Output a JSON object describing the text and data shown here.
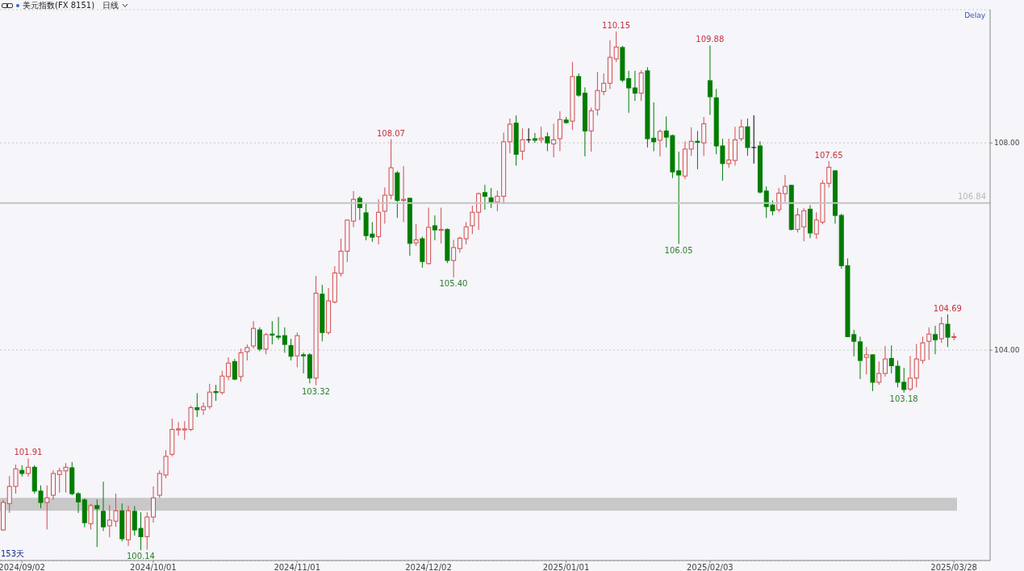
{
  "chart_data": {
    "type": "candlestick",
    "title": "美元指数(FX 8151)",
    "subtitle": "日线",
    "categories": [
      null,
      null,
      null,
      "2024/09/02",
      null,
      null,
      null,
      null,
      null,
      null,
      null,
      null,
      null,
      null,
      null,
      null,
      null,
      null,
      null,
      null,
      null,
      null,
      null,
      null,
      "2024/10/01",
      null,
      null,
      null,
      null,
      null,
      null,
      null,
      null,
      null,
      null,
      null,
      null,
      null,
      null,
      null,
      null,
      null,
      null,
      null,
      null,
      null,
      null,
      "2024/11/01",
      null,
      null,
      null,
      null,
      null,
      null,
      null,
      null,
      null,
      null,
      null,
      null,
      null,
      null,
      null,
      null,
      null,
      null,
      null,
      null,
      "2024/12/02",
      null,
      null,
      null,
      null,
      null,
      null,
      null,
      null,
      null,
      null,
      null,
      null,
      null,
      null,
      null,
      null,
      null,
      null,
      null,
      null,
      null,
      "2025/01/01",
      null,
      null,
      null,
      null,
      null,
      null,
      null,
      null,
      null,
      null,
      null,
      null,
      null,
      null,
      null,
      null,
      null,
      null,
      null,
      null,
      null,
      null,
      "2025/02/03",
      null,
      null,
      null,
      null,
      null,
      null,
      null,
      null,
      null,
      null,
      null,
      null,
      null,
      null,
      null,
      null,
      null,
      null,
      null,
      null,
      null,
      null,
      null,
      null,
      null,
      null,
      null,
      null,
      null,
      null,
      null,
      null,
      null,
      null,
      null,
      null,
      null,
      null,
      "2025/03/28"
    ],
    "ohlc": [
      [
        100.53,
        101.11,
        100.51,
        101.06
      ],
      [
        101.04,
        101.57,
        100.86,
        101.37
      ],
      [
        101.37,
        101.79,
        101.23,
        101.71
      ],
      [
        101.68,
        101.78,
        101.56,
        101.62
      ],
      [
        101.62,
        101.91,
        101.56,
        101.74
      ],
      [
        101.74,
        101.78,
        101.23,
        101.28
      ],
      [
        101.28,
        101.39,
        100.95,
        101.06
      ],
      [
        101.06,
        101.39,
        100.54,
        101.15
      ],
      [
        101.2,
        101.68,
        101.11,
        101.62
      ],
      [
        101.6,
        101.73,
        101.25,
        101.67
      ],
      [
        101.67,
        101.82,
        101.25,
        101.74
      ],
      [
        101.73,
        101.84,
        101.2,
        101.23
      ],
      [
        101.23,
        101.26,
        100.86,
        101.07
      ],
      [
        101.11,
        101.14,
        100.58,
        100.67
      ],
      [
        100.65,
        101.03,
        100.54,
        101.0
      ],
      [
        101.0,
        101.12,
        100.2,
        100.94
      ],
      [
        100.89,
        101.46,
        100.51,
        100.59
      ],
      [
        100.61,
        101.01,
        100.39,
        100.72
      ],
      [
        100.7,
        101.23,
        100.59,
        100.9
      ],
      [
        100.9,
        101.04,
        100.31,
        100.36
      ],
      [
        100.34,
        101.0,
        100.22,
        100.9
      ],
      [
        100.89,
        100.99,
        100.42,
        100.53
      ],
      [
        100.56,
        100.87,
        100.14,
        100.4
      ],
      [
        100.4,
        100.87,
        100.15,
        100.78
      ],
      [
        100.78,
        101.37,
        100.67,
        101.15
      ],
      [
        101.2,
        101.68,
        101.15,
        101.62
      ],
      [
        101.59,
        102.07,
        101.53,
        101.95
      ],
      [
        101.99,
        102.68,
        101.95,
        102.47
      ],
      [
        102.46,
        102.61,
        102.35,
        102.48
      ],
      [
        102.46,
        102.63,
        102.27,
        102.48
      ],
      [
        102.47,
        102.93,
        102.44,
        102.89
      ],
      [
        102.89,
        103.17,
        102.71,
        102.85
      ],
      [
        102.85,
        102.99,
        102.75,
        102.91
      ],
      [
        102.91,
        103.35,
        102.86,
        103.19
      ],
      [
        103.2,
        103.33,
        103.02,
        103.18
      ],
      [
        103.18,
        103.6,
        103.14,
        103.5
      ],
      [
        103.49,
        103.86,
        103.42,
        103.75
      ],
      [
        103.78,
        103.83,
        103.42,
        103.44
      ],
      [
        103.49,
        104.03,
        103.39,
        103.95
      ],
      [
        103.97,
        104.11,
        103.8,
        104.05
      ],
      [
        104.08,
        104.56,
        104.03,
        104.42
      ],
      [
        104.39,
        104.44,
        103.98,
        104.02
      ],
      [
        104.02,
        104.33,
        103.92,
        104.3
      ],
      [
        104.31,
        104.56,
        104.11,
        104.29
      ],
      [
        104.27,
        104.64,
        104.2,
        104.25
      ],
      [
        104.28,
        104.44,
        103.95,
        104.11
      ],
      [
        104.09,
        104.22,
        103.8,
        103.88
      ],
      [
        103.89,
        104.34,
        103.67,
        104.28
      ],
      [
        103.91,
        103.95,
        103.55,
        103.89
      ],
      [
        103.91,
        103.94,
        103.36,
        103.46
      ],
      [
        103.46,
        105.43,
        103.32,
        105.1
      ],
      [
        105.08,
        105.26,
        104.17,
        104.34
      ],
      [
        104.34,
        105.2,
        104.3,
        104.95
      ],
      [
        104.93,
        105.62,
        104.9,
        105.49
      ],
      [
        105.48,
        106.15,
        105.42,
        105.91
      ],
      [
        105.91,
        106.52,
        105.7,
        106.51
      ],
      [
        106.49,
        107.07,
        106.37,
        106.91
      ],
      [
        106.93,
        106.97,
        106.51,
        106.75
      ],
      [
        106.65,
        106.82,
        106.12,
        106.21
      ],
      [
        106.24,
        106.47,
        106.09,
        106.18
      ],
      [
        106.19,
        106.91,
        106.04,
        106.66
      ],
      [
        106.68,
        107.14,
        106.44,
        106.99
      ],
      [
        106.99,
        108.07,
        106.91,
        107.52
      ],
      [
        107.42,
        107.46,
        106.55,
        106.89
      ],
      [
        106.89,
        107.55,
        106.47,
        106.91
      ],
      [
        106.93,
        106.94,
        105.82,
        106.06
      ],
      [
        106.07,
        106.43,
        106.01,
        106.13
      ],
      [
        106.15,
        106.19,
        105.59,
        105.71
      ],
      [
        105.67,
        106.75,
        105.65,
        106.37
      ],
      [
        106.4,
        106.6,
        106.12,
        106.32
      ],
      [
        106.31,
        106.75,
        106.06,
        106.33
      ],
      [
        106.33,
        106.35,
        105.68,
        105.73
      ],
      [
        105.73,
        106.13,
        105.4,
        105.98
      ],
      [
        105.96,
        106.19,
        105.88,
        106.16
      ],
      [
        106.15,
        106.47,
        106.04,
        106.38
      ],
      [
        106.4,
        106.79,
        106.24,
        106.66
      ],
      [
        106.66,
        107.04,
        106.32,
        107.02
      ],
      [
        107.04,
        107.19,
        106.71,
        106.97
      ],
      [
        106.94,
        107.13,
        106.74,
        106.86
      ],
      [
        106.86,
        107.08,
        106.68,
        106.97
      ],
      [
        106.97,
        108.2,
        106.82,
        108.02
      ],
      [
        108.02,
        108.47,
        107.8,
        108.36
      ],
      [
        108.38,
        108.53,
        107.56,
        107.78
      ],
      [
        107.84,
        108.28,
        107.67,
        108.06
      ],
      [
        108.06,
        108.28,
        108.0,
        108.06
      ],
      [
        108.08,
        108.19,
        108.0,
        108.05
      ],
      [
        108.06,
        108.31,
        108.0,
        108.09
      ],
      [
        108.12,
        108.2,
        107.84,
        108.0
      ],
      [
        107.98,
        108.37,
        107.72,
        108.06
      ],
      [
        108.08,
        108.61,
        107.84,
        108.45
      ],
      [
        108.44,
        108.5,
        108.37,
        108.39
      ],
      [
        108.42,
        109.56,
        108.25,
        109.28
      ],
      [
        109.28,
        109.34,
        108.89,
        108.92
      ],
      [
        108.96,
        109.07,
        107.74,
        108.23
      ],
      [
        108.23,
        108.68,
        107.83,
        108.62
      ],
      [
        108.64,
        109.37,
        108.53,
        109.01
      ],
      [
        108.99,
        109.34,
        108.92,
        109.15
      ],
      [
        109.15,
        109.98,
        109.04,
        109.65
      ],
      [
        109.62,
        110.15,
        109.56,
        109.85
      ],
      [
        109.84,
        109.87,
        109.17,
        109.21
      ],
      [
        109.24,
        109.39,
        108.58,
        109.06
      ],
      [
        109.06,
        109.39,
        108.81,
        108.96
      ],
      [
        108.96,
        109.4,
        108.81,
        109.35
      ],
      [
        109.39,
        109.46,
        107.91,
        108.08
      ],
      [
        108.09,
        108.78,
        107.84,
        108.02
      ],
      [
        108.05,
        108.26,
        107.74,
        108.22
      ],
      [
        108.23,
        108.51,
        107.91,
        108.11
      ],
      [
        108.14,
        108.16,
        107.32,
        107.44
      ],
      [
        107.46,
        107.83,
        106.05,
        107.38
      ],
      [
        107.36,
        108.03,
        107.3,
        107.88
      ],
      [
        107.88,
        108.3,
        107.75,
        108.03
      ],
      [
        108.03,
        108.23,
        107.49,
        108.01
      ],
      [
        108.0,
        108.5,
        107.75,
        108.37
      ],
      [
        109.2,
        109.88,
        108.54,
        108.89
      ],
      [
        108.87,
        109.04,
        107.78,
        107.94
      ],
      [
        107.94,
        108.08,
        107.27,
        107.6
      ],
      [
        107.6,
        108.08,
        107.52,
        107.67
      ],
      [
        107.66,
        108.31,
        107.56,
        108.06
      ],
      [
        108.08,
        108.45,
        108.03,
        108.31
      ],
      [
        108.31,
        108.47,
        107.75,
        107.91
      ],
      [
        107.91,
        108.53,
        107.6,
        107.91
      ],
      [
        107.94,
        108.03,
        107.02,
        107.05
      ],
      [
        107.07,
        107.16,
        106.55,
        106.77
      ],
      [
        106.8,
        106.89,
        106.6,
        106.69
      ],
      [
        106.71,
        107.13,
        106.66,
        107.03
      ],
      [
        107.02,
        107.38,
        106.86,
        107.16
      ],
      [
        107.18,
        107.19,
        106.31,
        106.33
      ],
      [
        106.33,
        106.74,
        106.27,
        106.61
      ],
      [
        106.38,
        106.74,
        106.1,
        106.69
      ],
      [
        106.72,
        106.8,
        106.16,
        106.26
      ],
      [
        106.24,
        106.66,
        106.15,
        106.51
      ],
      [
        106.47,
        107.28,
        106.43,
        107.22
      ],
      [
        107.22,
        107.65,
        107.14,
        107.53
      ],
      [
        107.46,
        107.47,
        106.44,
        106.6
      ],
      [
        106.6,
        106.63,
        105.57,
        105.63
      ],
      [
        105.63,
        105.77,
        104.25,
        104.26
      ],
      [
        104.3,
        104.39,
        103.88,
        104.17
      ],
      [
        104.16,
        104.26,
        103.44,
        103.8
      ],
      [
        103.86,
        104.06,
        103.53,
        103.91
      ],
      [
        103.91,
        103.92,
        103.21,
        103.38
      ],
      [
        103.38,
        103.78,
        103.33,
        103.55
      ],
      [
        103.55,
        104.08,
        103.49,
        103.83
      ],
      [
        103.84,
        104.09,
        103.55,
        103.7
      ],
      [
        103.69,
        103.8,
        103.28,
        103.38
      ],
      [
        103.38,
        103.66,
        103.18,
        103.24
      ],
      [
        103.25,
        103.89,
        103.21,
        103.46
      ],
      [
        103.46,
        104.12,
        103.28,
        103.83
      ],
      [
        103.8,
        104.26,
        103.74,
        104.14
      ],
      [
        104.17,
        104.44,
        103.81,
        104.31
      ],
      [
        104.3,
        104.47,
        103.92,
        104.2
      ],
      [
        104.22,
        104.64,
        104.14,
        104.51
      ],
      [
        104.5,
        104.69,
        104.06,
        104.25
      ],
      [
        104.25,
        104.33,
        104.19,
        104.26
      ]
    ],
    "colors": [
      "#d24b4b",
      "#d24b4b",
      "#d24b4b",
      "#007c00",
      "#d24b4b",
      "#007c00",
      "#007c00",
      "#d24b4b",
      "#d24b4b",
      "#d24b4b",
      "#d24b4b",
      "#007c00",
      "#007c00",
      "#007c00",
      "#d24b4b",
      "#007c00",
      "#007c00",
      "#d24b4b",
      "#d24b4b",
      "#007c00",
      "#d24b4b",
      "#007c00",
      "#007c00",
      "#d24b4b",
      "#d24b4b",
      "#d24b4b",
      "#d24b4b",
      "#d24b4b",
      "#d24b4b",
      "#d24b4b",
      "#d24b4b",
      "#007c00",
      "#d24b4b",
      "#d24b4b",
      "#007c00",
      "#d24b4b",
      "#d24b4b",
      "#007c00",
      "#d24b4b",
      "#d24b4b",
      "#d24b4b",
      "#007c00",
      "#d24b4b",
      "#007c00",
      "#007c00",
      "#007c00",
      "#007c00",
      "#d24b4b",
      "#007c00",
      "#007c00",
      "#d24b4b",
      "#007c00",
      "#d24b4b",
      "#d24b4b",
      "#d24b4b",
      "#d24b4b",
      "#d24b4b",
      "#007c00",
      "#007c00",
      "#007c00",
      "#d24b4b",
      "#d24b4b",
      "#d24b4b",
      "#007c00",
      "#d24b4b",
      "#007c00",
      "#d24b4b",
      "#007c00",
      "#d24b4b",
      "#007c00",
      "#d24b4b",
      "#007c00",
      "#d24b4b",
      "#d24b4b",
      "#d24b4b",
      "#d24b4b",
      "#d24b4b",
      "#007c00",
      "#007c00",
      "#d24b4b",
      "#d24b4b",
      "#d24b4b",
      "#007c00",
      "#d24b4b",
      "#000000",
      "#007c00",
      "#d24b4b",
      "#007c00",
      "#d24b4b",
      "#d24b4b",
      "#007c00",
      "#d24b4b",
      "#007c00",
      "#007c00",
      "#d24b4b",
      "#d24b4b",
      "#d24b4b",
      "#d24b4b",
      "#d24b4b",
      "#007c00",
      "#007c00",
      "#007c00",
      "#d24b4b",
      "#007c00",
      "#007c00",
      "#d24b4b",
      "#007c00",
      "#007c00",
      "#007c00",
      "#d24b4b",
      "#d24b4b",
      "#007c00",
      "#d24b4b",
      "#007c00",
      "#007c00",
      "#007c00",
      "#d24b4b",
      "#d24b4b",
      "#d24b4b",
      "#007c00",
      "#000000",
      "#007c00",
      "#007c00",
      "#007c00",
      "#d24b4b",
      "#d24b4b",
      "#007c00",
      "#d24b4b",
      "#d24b4b",
      "#007c00",
      "#d24b4b",
      "#d24b4b",
      "#d24b4b",
      "#007c00",
      "#007c00",
      "#007c00",
      "#007c00",
      "#007c00",
      "#d24b4b",
      "#007c00",
      "#d24b4b",
      "#d24b4b",
      "#007c00",
      "#007c00",
      "#007c00",
      "#d24b4b",
      "#d24b4b",
      "#d24b4b",
      "#d24b4b",
      "#007c00",
      "#d24b4b",
      "#007c00",
      "#d24b4b"
    ],
    "ylim": [
      99.94,
      110.57
    ],
    "yticks": [
      {
        "value": 104,
        "label": "104.00"
      },
      {
        "value": 108,
        "label": "108.00"
      }
    ],
    "grid": "y",
    "ref_lines": [
      {
        "axis": "y",
        "value": 106.84,
        "label": "106.84",
        "color": "#c4c4c4"
      }
    ],
    "bands": [
      {
        "axis": "y",
        "from": 100.9,
        "to": 101.15,
        "color": "#c8c8c8"
      }
    ],
    "annotations": [
      "Delay",
      "153天",
      {
        "text": "101.91",
        "y": 101.91
      },
      {
        "text": "100.14",
        "y": 100.14
      },
      {
        "text": "103.32",
        "y": 103.32
      },
      {
        "text": "108.07",
        "y": 108.07
      },
      {
        "text": "105.40",
        "y": 105.4
      },
      {
        "text": "110.15",
        "y": 110.15
      },
      {
        "text": "106.05",
        "y": 106.05
      },
      {
        "text": "109.88",
        "y": 109.88
      },
      {
        "text": "107.65",
        "y": 107.65
      },
      {
        "text": "103.18",
        "y": 103.18
      },
      {
        "text": "104.69",
        "y": 104.69
      }
    ]
  }
}
